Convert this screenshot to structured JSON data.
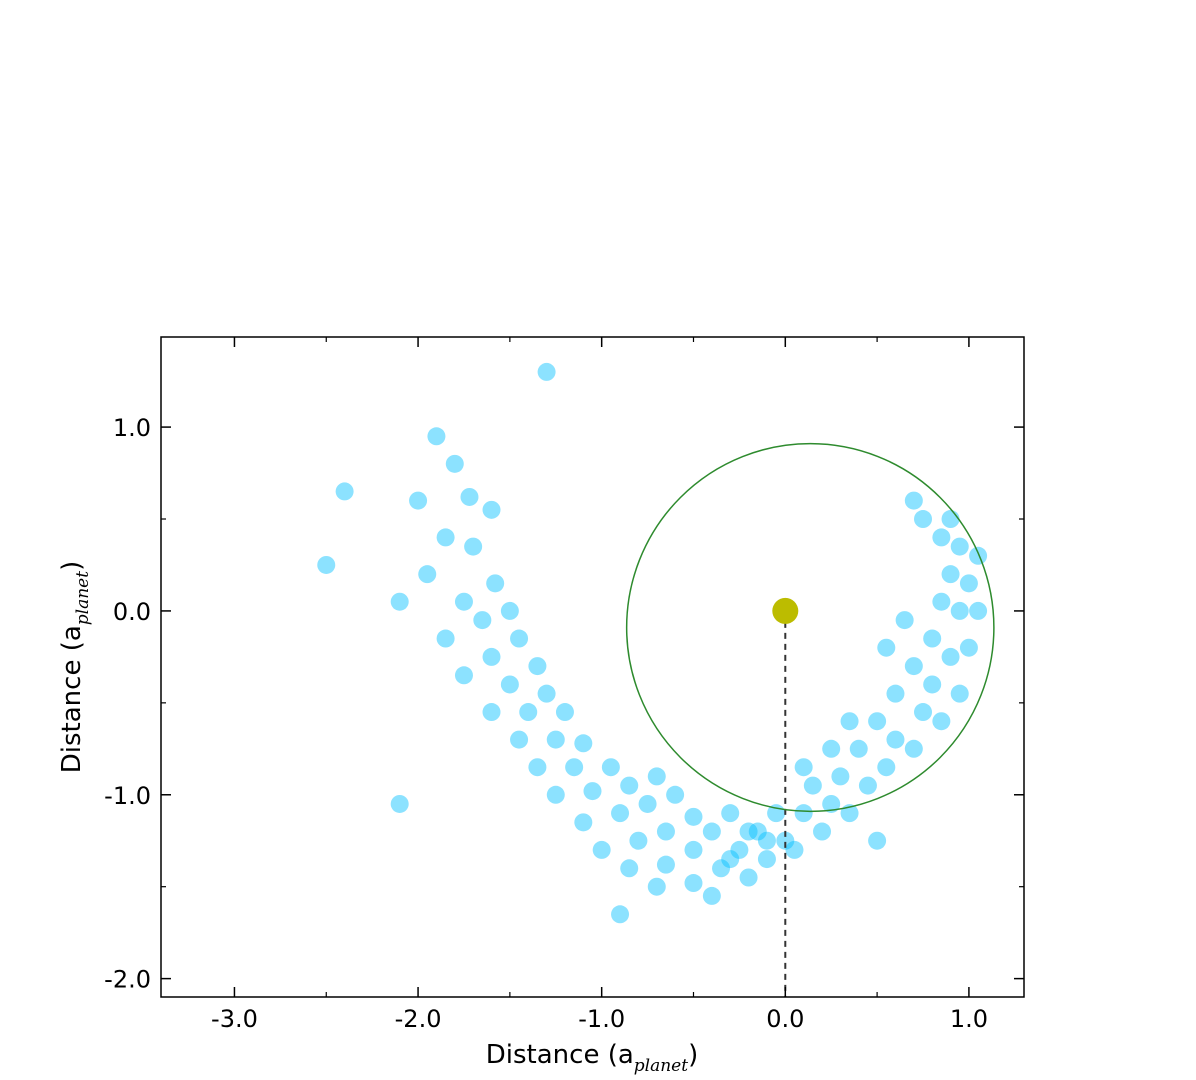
{
  "chart_data": {
    "type": "scatter",
    "xlabel": {
      "main": "Distance (a",
      "subscript": "planet",
      "close": ")"
    },
    "ylabel": {
      "main": "Distance (a",
      "subscript": "planet",
      "close": ")"
    },
    "xlim": [
      -3.4,
      1.3
    ],
    "ylim": [
      -2.1,
      1.49
    ],
    "xticks": [
      {
        "value": -3,
        "label": "-3.0"
      },
      {
        "value": -2,
        "label": "-2.0"
      },
      {
        "value": -1,
        "label": "-1.0"
      },
      {
        "value": 0,
        "label": "0.0"
      },
      {
        "value": 1,
        "label": "1.0"
      }
    ],
    "yticks": [
      {
        "value": -2,
        "label": "-2.0"
      },
      {
        "value": -1,
        "label": "-1.0"
      },
      {
        "value": 0,
        "label": "0.0"
      },
      {
        "value": 1,
        "label": "1.0"
      }
    ],
    "xminorticks": [
      -2.5,
      -1.5,
      -0.5,
      0.5
    ],
    "yminorticks": [
      -1.5,
      -0.5,
      0.5
    ],
    "series": [
      {
        "color": "#00bfff",
        "x": [
          -1.9,
          -1.8,
          -1.72,
          -2.0,
          -1.6,
          -1.85,
          -1.7,
          -1.95,
          -1.58,
          -1.75,
          -2.1,
          -1.5,
          -1.65,
          -1.85,
          -1.45,
          -1.6,
          -1.35,
          -1.75,
          -1.5,
          -1.3,
          -1.6,
          -1.4,
          -1.2,
          -1.45,
          -1.25,
          -1.1,
          -1.35,
          -1.15,
          -0.95,
          -1.25,
          -1.05,
          -0.85,
          -0.7,
          -1.1,
          -0.9,
          -0.75,
          -0.6,
          -1.0,
          -0.8,
          -0.65,
          -0.5,
          -0.85,
          -0.65,
          -0.5,
          -0.4,
          -0.3,
          -0.7,
          -0.5,
          -0.35,
          -0.25,
          -0.15,
          -0.05,
          -0.4,
          -0.2,
          -0.1,
          0.0,
          0.1,
          0.15,
          -0.3,
          -0.2,
          -0.1,
          0.05,
          0.2,
          0.25,
          0.3,
          0.1,
          0.35,
          0.45,
          0.4,
          0.25,
          0.55,
          0.6,
          0.5,
          0.35,
          0.7,
          0.75,
          0.6,
          0.85,
          0.8,
          0.7,
          0.95,
          0.9,
          0.8,
          1.0,
          0.95,
          0.85,
          1.05,
          1.0,
          0.9,
          1.05,
          0.95,
          0.85,
          0.9,
          0.75,
          0.7,
          0.55,
          0.65,
          -2.5,
          -2.1,
          -0.9,
          0.5,
          -1.3,
          -2.4
        ],
        "y": [
          0.95,
          0.8,
          0.62,
          0.6,
          0.55,
          0.4,
          0.35,
          0.2,
          0.15,
          0.05,
          0.05,
          0.0,
          -0.05,
          -0.15,
          -0.15,
          -0.25,
          -0.3,
          -0.35,
          -0.4,
          -0.45,
          -0.55,
          -0.55,
          -0.55,
          -0.7,
          -0.7,
          -0.72,
          -0.85,
          -0.85,
          -0.85,
          -1.0,
          -0.98,
          -0.95,
          -0.9,
          -1.15,
          -1.1,
          -1.05,
          -1.0,
          -1.3,
          -1.25,
          -1.2,
          -1.12,
          -1.4,
          -1.38,
          -1.3,
          -1.2,
          -1.1,
          -1.5,
          -1.48,
          -1.4,
          -1.3,
          -1.2,
          -1.1,
          -1.55,
          -1.45,
          -1.35,
          -1.25,
          -1.1,
          -0.95,
          -1.35,
          -1.2,
          -1.25,
          -1.3,
          -1.2,
          -1.05,
          -0.9,
          -0.85,
          -1.1,
          -0.95,
          -0.75,
          -0.75,
          -0.85,
          -0.7,
          -0.6,
          -0.6,
          -0.75,
          -0.55,
          -0.45,
          -0.6,
          -0.4,
          -0.3,
          -0.45,
          -0.25,
          -0.15,
          -0.2,
          0.0,
          0.05,
          0.0,
          0.15,
          0.2,
          0.3,
          0.35,
          0.4,
          0.5,
          0.5,
          0.6,
          -0.2,
          -0.05,
          0.25,
          -1.05,
          -1.65,
          -1.25,
          1.3,
          0.65
        ]
      }
    ],
    "circle": {
      "center": [
        0.136,
        -0.09
      ],
      "radius": 1.0,
      "color": "#2e8b2e"
    },
    "planet": {
      "x": 0,
      "y": 0,
      "color": "#bcbc00"
    },
    "dashed_line": {
      "x": 0,
      "y": [
        0,
        -2.1
      ]
    }
  }
}
